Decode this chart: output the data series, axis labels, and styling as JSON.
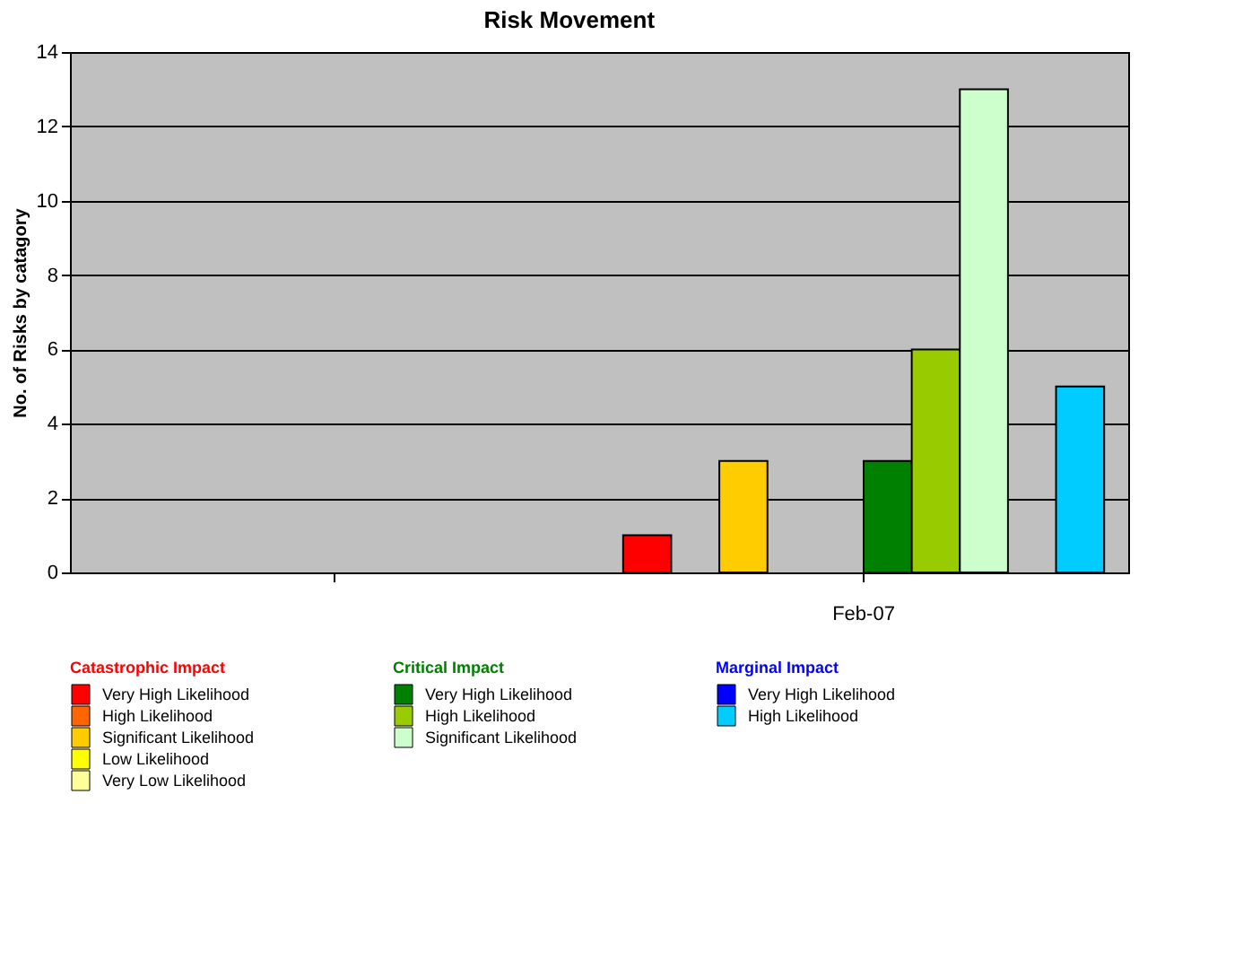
{
  "chart_data": {
    "type": "bar",
    "title": "Risk Movement",
    "ylabel": "No. of Risks by catagory",
    "categories": [
      null,
      "Feb-07"
    ],
    "series": [
      {
        "name": "Very High Likelihood",
        "color": "#ff0000",
        "values": [
          null,
          1
        ]
      },
      {
        "name": "High Likelihood",
        "color": "#ff6600",
        "values": [
          null,
          0
        ]
      },
      {
        "name": "Significant Likelihood",
        "color": "#ffcc00",
        "values": [
          null,
          3
        ]
      },
      {
        "name": "Low Likelihood",
        "color": "#ffff00",
        "values": [
          null,
          0
        ]
      },
      {
        "name": "Very Low Likelihood",
        "color": "#ffff99",
        "values": [
          null,
          0
        ]
      },
      {
        "name": "Very High Likelihood",
        "color": "#008000",
        "values": [
          null,
          3
        ]
      },
      {
        "name": "High Likelihood",
        "color": "#99cc00",
        "values": [
          null,
          6
        ]
      },
      {
        "name": "Significant Likelihood",
        "color": "#ccffcc",
        "values": [
          null,
          13
        ]
      },
      {
        "name": "Very High Likelihood",
        "color": "#0000ff",
        "values": [
          null,
          0
        ]
      },
      {
        "name": "High Likelihood",
        "color": "#00ccff",
        "values": [
          null,
          5
        ]
      }
    ],
    "annotations": [
      "Catastrophic Impact",
      "Critical Impact",
      "Marginal Impact"
    ],
    "ylim": [
      0,
      14
    ],
    "yticks": [
      0,
      2,
      4,
      6,
      8,
      10,
      12,
      14
    ],
    "grid": "y",
    "legend": "bottom"
  }
}
